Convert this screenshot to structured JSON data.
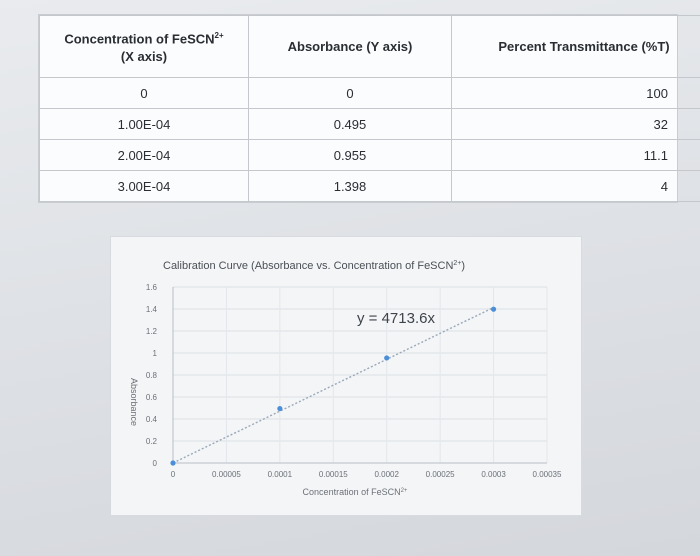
{
  "table": {
    "headers": [
      {
        "main": "Concentration of FeSCN",
        "sup": "2+",
        "line2": "(X axis)"
      },
      {
        "main": "Absorbance (Y axis)",
        "sup": "",
        "line2": ""
      },
      {
        "main": "Percent Transmittance (%T)",
        "sup": "",
        "line2": ""
      }
    ],
    "rows": [
      [
        "0",
        "0",
        "100"
      ],
      [
        "1.00E-04",
        "0.495",
        "32"
      ],
      [
        "2.00E-04",
        "0.955",
        "11.1"
      ],
      [
        "3.00E-04",
        "1.398",
        "4"
      ]
    ]
  },
  "chart_data": {
    "type": "scatter",
    "title": "Calibration Curve (Absorbance vs. Concentration of FeSCN",
    "title_sup": "2+",
    "title_end": ")",
    "xlabel": "Concentration of FeSCN",
    "xlabel_sup": "2+",
    "ylabel": "Absorbance",
    "xlim": [
      0,
      0.00035
    ],
    "ylim": [
      0,
      1.6
    ],
    "x_ticks": [
      "0",
      "0.00005",
      "0.0001",
      "0.00015",
      "0.0002",
      "0.00025",
      "0.0003",
      "0.00035"
    ],
    "y_ticks": [
      "0",
      "0.2",
      "0.4",
      "0.6",
      "0.8",
      "1",
      "1.2",
      "1.4",
      "1.6"
    ],
    "grid": true,
    "series": [
      {
        "x": [
          0,
          0.0001,
          0.0002,
          0.0003
        ],
        "y": [
          0,
          0.495,
          0.955,
          1.398
        ],
        "color": "#4a8fd8"
      }
    ],
    "trendline": {
      "slope": 4713.6,
      "intercept": 0,
      "equation": "y = 4713.6x",
      "color": "#9aa8b8"
    }
  }
}
